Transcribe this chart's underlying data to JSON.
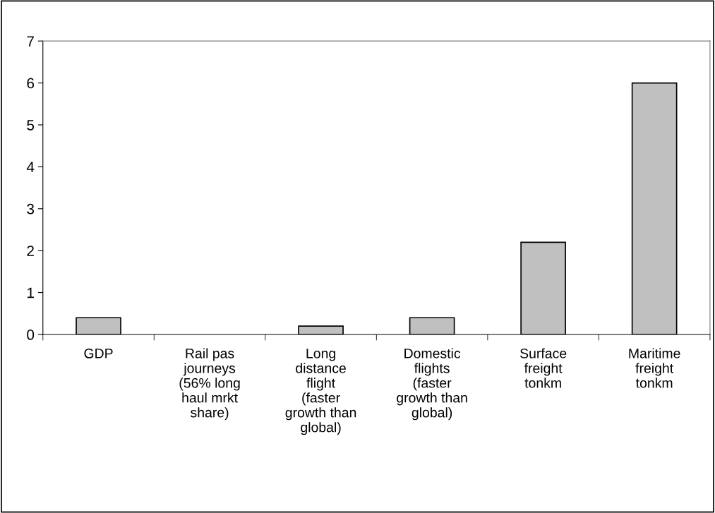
{
  "chart_data": {
    "type": "bar",
    "categories": [
      "GDP",
      "Rail pas\njourneys\n(56% long\nhaul mrkt\nshare)",
      "Long\ndistance\nflight\n(faster\ngrowth than\nglobal)",
      "Domestic\nflights\n(faster\ngrowth than\nglobal)",
      "Surface\nfreight\ntonkm",
      "Maritime\nfreight\ntonkm"
    ],
    "values": [
      0.4,
      0,
      0.2,
      0.4,
      2.2,
      6
    ],
    "color": "#c0c0c0",
    "ylim": [
      0,
      7
    ],
    "yticks": [
      0,
      1,
      2,
      3,
      4,
      5,
      6,
      7
    ],
    "grid": false
  }
}
